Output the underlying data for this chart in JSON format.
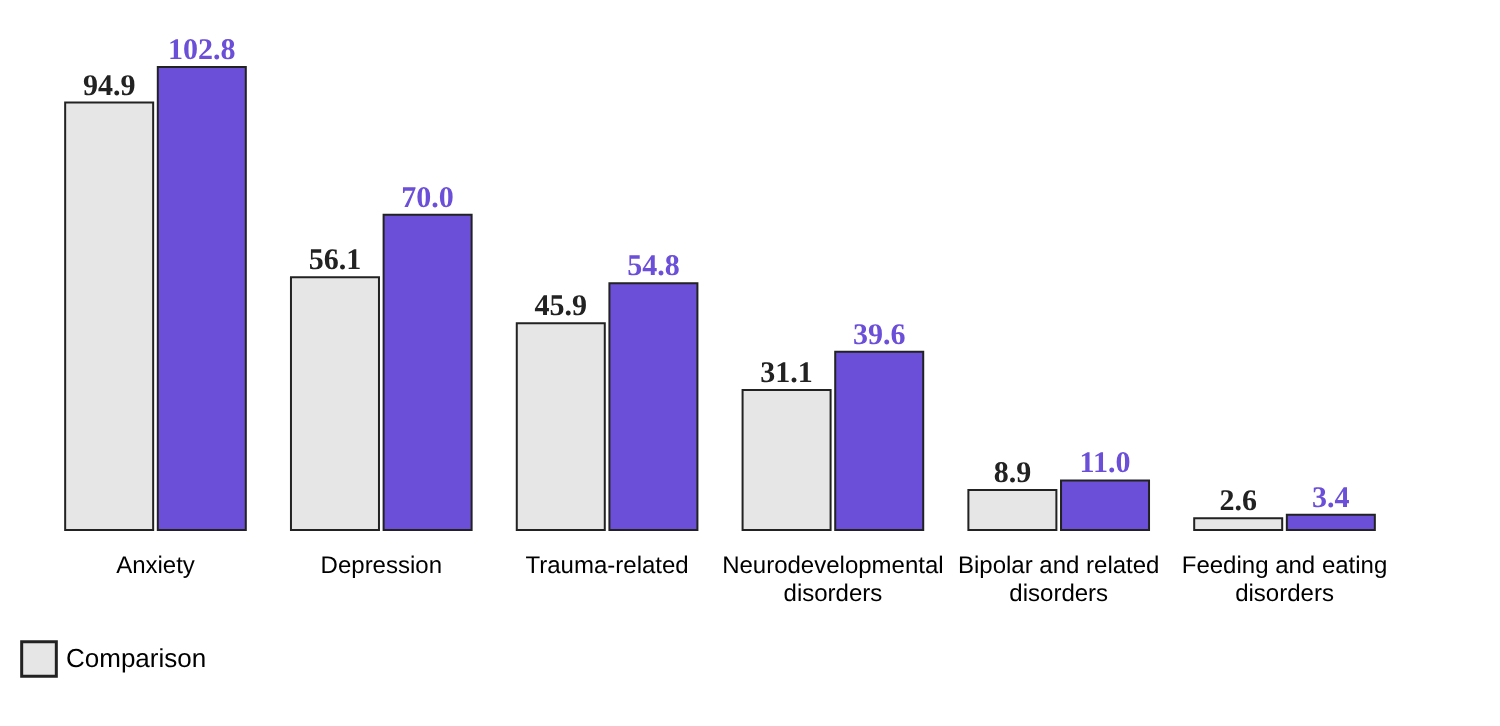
{
  "chart_data": {
    "type": "bar",
    "categories": [
      "Anxiety",
      "Depression",
      "Trauma-related",
      "Neurodevelopmental disorders",
      "Bipolar and related disorders",
      "Feeding and eating disorders"
    ],
    "series": [
      {
        "name": "Comparison",
        "color": "#e6e6e6",
        "values": [
          94.9,
          56.1,
          45.9,
          31.1,
          8.9,
          2.6
        ],
        "value_labels": [
          "94.9",
          "56.1",
          "45.9",
          "31.1",
          "8.9",
          "2.6"
        ]
      },
      {
        "color": "#6b4fd8",
        "values": [
          102.8,
          70.0,
          54.8,
          39.6,
          11.0,
          3.4
        ],
        "value_labels": [
          "102.8",
          "70.0",
          "54.8",
          "39.6",
          "11.0",
          "3.4"
        ]
      }
    ],
    "legend": "bottom"
  }
}
